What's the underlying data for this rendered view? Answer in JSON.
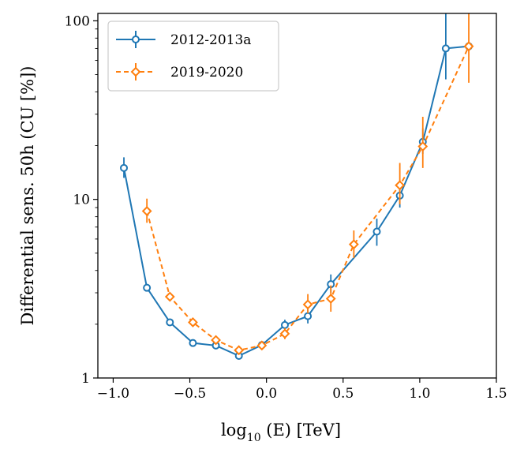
{
  "chart_data": {
    "type": "line",
    "title": "",
    "xlabel_main": "log",
    "xlabel_sub": "10",
    "xlabel_rest": " (E) [TeV]",
    "ylabel": "Differential sens. 50h (CU [%])",
    "xlim": [
      -1.1,
      1.5
    ],
    "ylim": [
      1,
      110
    ],
    "yscale": "log",
    "xticks": [
      {
        "value": -1.0,
        "label": "−1.0"
      },
      {
        "value": -0.5,
        "label": "−0.5"
      },
      {
        "value": 0.0,
        "label": "0.0"
      },
      {
        "value": 0.5,
        "label": "0.5"
      },
      {
        "value": 1.0,
        "label": "1.0"
      },
      {
        "value": 1.5,
        "label": "1.5"
      }
    ],
    "yticks": [
      {
        "value": 1,
        "label": "1"
      },
      {
        "value": 10,
        "label": "10"
      },
      {
        "value": 100,
        "label": "100"
      }
    ],
    "legend_position": "upper-left",
    "series": [
      {
        "name": "2012-2013a",
        "color": "#1f77b4",
        "linestyle": "solid",
        "marker": "circle",
        "points": [
          {
            "x": -0.93,
            "y": 15.0,
            "ylo": 13.2,
            "yhi": 17.2
          },
          {
            "x": -0.78,
            "y": 3.2,
            "ylo": 3.05,
            "yhi": 3.35
          },
          {
            "x": -0.63,
            "y": 2.05,
            "ylo": 1.98,
            "yhi": 2.12
          },
          {
            "x": -0.48,
            "y": 1.57,
            "ylo": 1.52,
            "yhi": 1.62
          },
          {
            "x": -0.33,
            "y": 1.52,
            "ylo": 1.47,
            "yhi": 1.57
          },
          {
            "x": -0.18,
            "y": 1.33,
            "ylo": 1.28,
            "yhi": 1.38
          },
          {
            "x": -0.03,
            "y": 1.53,
            "ylo": 1.47,
            "yhi": 1.59
          },
          {
            "x": 0.12,
            "y": 1.98,
            "ylo": 1.86,
            "yhi": 2.12
          },
          {
            "x": 0.27,
            "y": 2.22,
            "ylo": 2.02,
            "yhi": 2.45
          },
          {
            "x": 0.42,
            "y": 3.35,
            "ylo": 3.0,
            "yhi": 3.8
          },
          {
            "x": 0.72,
            "y": 6.6,
            "ylo": 5.5,
            "yhi": 7.8
          },
          {
            "x": 0.87,
            "y": 10.5,
            "ylo": 9.0,
            "yhi": 12.3
          },
          {
            "x": 1.02,
            "y": 21.0,
            "ylo": 18.0,
            "yhi": 25.0
          },
          {
            "x": 1.17,
            "y": 70.0,
            "ylo": 47.0,
            "yhi": 110.0
          },
          {
            "x": 1.32,
            "y": 72.0,
            "ylo": 72.0,
            "yhi": 72.0
          }
        ]
      },
      {
        "name": "2019-2020",
        "color": "#ff7f0e",
        "linestyle": "dashed",
        "marker": "diamond",
        "points": [
          {
            "x": -0.78,
            "y": 8.6,
            "ylo": 7.4,
            "yhi": 10.1
          },
          {
            "x": -0.63,
            "y": 2.85,
            "ylo": 2.75,
            "yhi": 2.95
          },
          {
            "x": -0.48,
            "y": 2.05,
            "ylo": 1.98,
            "yhi": 2.12
          },
          {
            "x": -0.33,
            "y": 1.63,
            "ylo": 1.57,
            "yhi": 1.7
          },
          {
            "x": -0.18,
            "y": 1.43,
            "ylo": 1.38,
            "yhi": 1.48
          },
          {
            "x": -0.03,
            "y": 1.52,
            "ylo": 1.47,
            "yhi": 1.57
          },
          {
            "x": 0.12,
            "y": 1.77,
            "ylo": 1.65,
            "yhi": 1.9
          },
          {
            "x": 0.27,
            "y": 2.58,
            "ylo": 2.3,
            "yhi": 2.95
          },
          {
            "x": 0.42,
            "y": 2.78,
            "ylo": 2.35,
            "yhi": 3.3
          },
          {
            "x": 0.57,
            "y": 5.6,
            "ylo": 4.7,
            "yhi": 6.7
          },
          {
            "x": 0.87,
            "y": 12.0,
            "ylo": 9.4,
            "yhi": 16.0
          },
          {
            "x": 1.02,
            "y": 19.8,
            "ylo": 15.0,
            "yhi": 29.0
          },
          {
            "x": 1.32,
            "y": 72.0,
            "ylo": 45.0,
            "yhi": 110.0
          }
        ]
      }
    ]
  }
}
